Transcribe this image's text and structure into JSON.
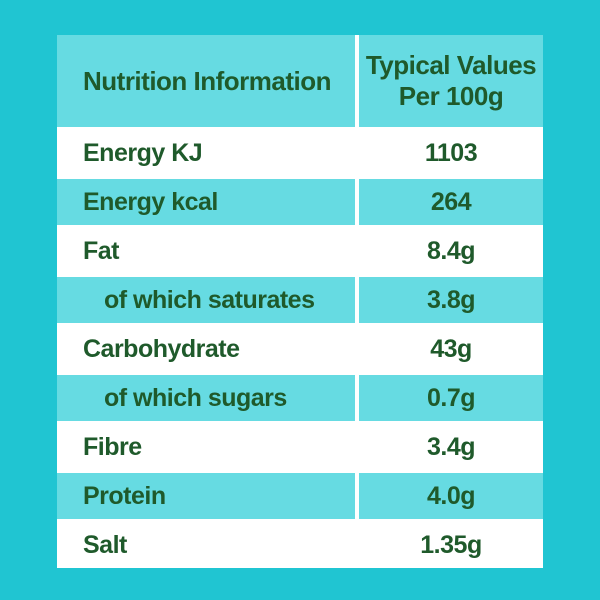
{
  "header": {
    "title": "Nutrition Information",
    "value_heading_line1": "Typical Values",
    "value_heading_line2": "Per 100g"
  },
  "rows": [
    {
      "label": "Energy KJ",
      "value": "1103"
    },
    {
      "label": "Energy kcal",
      "value": "264"
    },
    {
      "label": "Fat",
      "value": "8.4g"
    },
    {
      "label": "of which saturates",
      "value": "3.8g"
    },
    {
      "label": "Carbohydrate",
      "value": "43g"
    },
    {
      "label": "of which sugars",
      "value": "0.7g"
    },
    {
      "label": "Fibre",
      "value": "3.4g"
    },
    {
      "label": "Protein",
      "value": "4.0g"
    },
    {
      "label": "Salt",
      "value": "1.35g"
    }
  ],
  "colors": {
    "background": "#20c5d2",
    "row_alt": "#66dbe2",
    "text": "#1f5a2b"
  }
}
